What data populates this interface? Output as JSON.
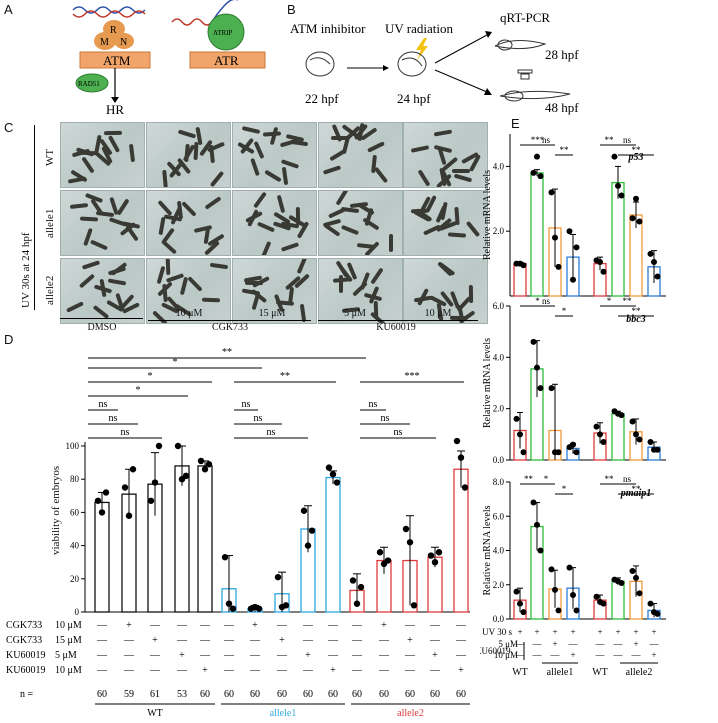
{
  "panels": {
    "A": "A",
    "B": "B",
    "C": "C",
    "D": "D",
    "E": "E"
  },
  "panelA": {
    "atm": "ATM",
    "atr": "ATR",
    "r": "R",
    "m": "M",
    "n": "N",
    "atrip": "ATRIP",
    "rad51": "RAD51",
    "hr": "HR"
  },
  "panelB": {
    "inhibitor": "ATM inhibitor",
    "uv": "UV radiation",
    "qrt": "qRT-PCR",
    "t22": "22 hpf",
    "t24": "24 hpf",
    "t28": "28 hpf",
    "t48": "48 hpf"
  },
  "panelC": {
    "side": "UV 30s at 24 hpf",
    "rows": [
      "WT",
      "allele1",
      "allele2"
    ],
    "dmso": "DMSO",
    "cgk": "CGK733",
    "ku": "KU60019",
    "c1": "10 μM",
    "c2": "15 μM",
    "k1": "5 μM",
    "k2": "10 μM"
  },
  "panelD": {
    "ylabel": "viability of embryos",
    "sig": [
      "*",
      "**",
      "*",
      "*",
      "ns",
      "ns",
      "ns",
      "**",
      "ns",
      "ns",
      "ns",
      "***",
      "ns",
      "ns",
      "ns"
    ],
    "rows": [
      {
        "label": "CGK733",
        "conc": "10 μM",
        "marks": [
          "—",
          "+",
          "—",
          "—",
          "—",
          "—",
          "+",
          "—",
          "—",
          "—",
          "—",
          "+",
          "—",
          "—",
          "—"
        ]
      },
      {
        "label": "CGK733",
        "conc": "15 μM",
        "marks": [
          "—",
          "—",
          "+",
          "—",
          "—",
          "—",
          "—",
          "+",
          "—",
          "—",
          "—",
          "—",
          "+",
          "—",
          "—"
        ]
      },
      {
        "label": "KU60019",
        "conc": "5 μM",
        "marks": [
          "—",
          "—",
          "—",
          "+",
          "—",
          "—",
          "—",
          "—",
          "+",
          "—",
          "—",
          "—",
          "—",
          "+",
          "—"
        ]
      },
      {
        "label": "KU60019",
        "conc": "10 μM",
        "marks": [
          "—",
          "—",
          "—",
          "—",
          "+",
          "—",
          "—",
          "—",
          "—",
          "+",
          "—",
          "—",
          "—",
          "—",
          "+"
        ]
      }
    ],
    "n_label": "n =",
    "n": [
      "60",
      "59",
      "61",
      "53",
      "60",
      "60",
      "60",
      "60",
      "60",
      "60",
      "60",
      "60",
      "60",
      "60",
      "60"
    ],
    "groups": [
      "WT",
      "allele1",
      "allele2"
    ]
  },
  "chart_data": [
    {
      "type": "bar",
      "title": "",
      "ylabel": "viability of embryos",
      "ylim": [
        0,
        100
      ],
      "categories": [
        "WT DMSO",
        "WT CGK733 10 μM",
        "WT CGK733 15 μM",
        "WT KU60019 5 μM",
        "WT KU60019 10 μM",
        "allele1 DMSO",
        "allele1 CGK733 10 μM",
        "allele1 CGK733 15 μM",
        "allele1 KU60019 5 μM",
        "allele1 KU60019 10 μM",
        "allele2 DMSO",
        "allele2 CGK733 10 μM",
        "allele2 CGK733 15 μM",
        "allele2 KU60019 5 μM",
        "allele2 KU60019 10 μM"
      ],
      "values": [
        66,
        71,
        77,
        88,
        88,
        14,
        2,
        11,
        50,
        81,
        13,
        31,
        31,
        33,
        86
      ],
      "errors": [
        6,
        15,
        19,
        12,
        3,
        20,
        2,
        13,
        14,
        4,
        10,
        8,
        27,
        6,
        11
      ],
      "colors": [
        "#111111",
        "#111111",
        "#111111",
        "#111111",
        "#111111",
        "#2ea8e0",
        "#2ea8e0",
        "#2ea8e0",
        "#2ea8e0",
        "#2ea8e0",
        "#e03a3a",
        "#e03a3a",
        "#e03a3a",
        "#e03a3a",
        "#e03a3a"
      ],
      "points": [
        [
          67,
          60,
          72
        ],
        [
          75,
          58,
          86
        ],
        [
          67,
          78,
          100
        ],
        [
          100,
          80,
          82
        ],
        [
          91,
          86,
          89
        ],
        [
          33,
          5,
          2
        ],
        [
          2,
          3,
          2
        ],
        [
          21,
          3,
          4
        ],
        [
          61,
          40,
          49
        ],
        [
          87,
          83,
          78
        ],
        [
          19,
          5,
          15
        ],
        [
          36,
          29,
          31
        ],
        [
          50,
          42,
          4
        ],
        [
          34,
          30,
          36
        ],
        [
          103,
          93,
          75
        ]
      ],
      "ticks": [
        0,
        20,
        40,
        60,
        80,
        100
      ]
    },
    {
      "type": "bar",
      "title": "p53",
      "ylabel": "Relative mRNA levels",
      "ylim": [
        0,
        5
      ],
      "categories": [
        "WT",
        "allele1",
        "allele1 KU60019 5 μM",
        "allele1 KU60019 10 μM",
        "WT",
        "allele2",
        "allele2 KU60019 5 μM",
        "allele2 KU60019 10 μM"
      ],
      "values": [
        1,
        3.8,
        2.1,
        1.2,
        1.0,
        3.5,
        2.5,
        0.9
      ],
      "errors": [
        0.05,
        0.1,
        1.2,
        0.7,
        0.2,
        0.5,
        0.4,
        0.5
      ],
      "points": [
        [
          1,
          1,
          0.95
        ],
        [
          3.8,
          4.3,
          3.7
        ],
        [
          3.2,
          1.8,
          0.9
        ],
        [
          2.0,
          0.5,
          1.5
        ],
        [
          1.1,
          1.05,
          0.75
        ],
        [
          4.3,
          3.4,
          3.1
        ],
        [
          2.4,
          3.0,
          2.3
        ],
        [
          1.3,
          1.05,
          0.6
        ]
      ],
      "ticks": [
        2.0,
        4.0
      ],
      "sig": [
        "***",
        "ns",
        "**",
        "**",
        "ns",
        "**"
      ]
    },
    {
      "type": "bar",
      "title": "bbc3",
      "ylabel": "Relative mRNA levels",
      "ylim": [
        0,
        6
      ],
      "categories": [
        "WT",
        "allele1",
        "allele1 KU60019 5 μM",
        "allele1 KU60019 10 μM",
        "WT",
        "allele2",
        "allele2 KU60019 5 μM",
        "allele2 KU60019 10 μM"
      ],
      "values": [
        1.15,
        3.55,
        1.15,
        0.45,
        1.05,
        1.8,
        1.1,
        0.5
      ],
      "errors": [
        0.7,
        1.1,
        1.8,
        0.2,
        0.4,
        0.1,
        0.5,
        0.2
      ],
      "points": [
        [
          1.6,
          1.0,
          0.3
        ],
        [
          4.6,
          3.6,
          2.8
        ],
        [
          2.8,
          0.3,
          0.3
        ],
        [
          0.5,
          0.6,
          0.3
        ],
        [
          1.3,
          1.0,
          0.7
        ],
        [
          1.9,
          1.8,
          1.75
        ],
        [
          1.5,
          1.0,
          0.8
        ],
        [
          0.7,
          0.4,
          0.4
        ]
      ],
      "ticks": [
        0.0,
        2.0,
        4.0,
        6.0
      ],
      "sig": [
        "*",
        "ns",
        "*",
        "*",
        "**",
        "**"
      ]
    },
    {
      "type": "bar",
      "title": "pmaip1",
      "ylabel": "Relative mRNA levels",
      "ylim": [
        0,
        8
      ],
      "categories": [
        "WT",
        "allele1",
        "allele1 KU60019 5 μM",
        "allele1 KU60019 10 μM",
        "WT",
        "allele2",
        "allele2 KU60019 5 μM",
        "allele2 KU60019 10 μM"
      ],
      "values": [
        1.1,
        5.4,
        1.75,
        1.8,
        1.1,
        2.2,
        2.2,
        0.5
      ],
      "errors": [
        0.7,
        1.4,
        1.1,
        1.2,
        0.3,
        0.2,
        0.9,
        0.4
      ],
      "points": [
        [
          1.6,
          0.9,
          0.4
        ],
        [
          6.8,
          5.5,
          4.0
        ],
        [
          2.9,
          1.7,
          0.5
        ],
        [
          3.0,
          1.4,
          0.5
        ],
        [
          1.3,
          1.0,
          0.9
        ],
        [
          2.3,
          2.2,
          2.1
        ],
        [
          2.8,
          2.4,
          1.5
        ],
        [
          0.9,
          0.4,
          0.3
        ]
      ],
      "ticks": [
        0.0,
        2.0,
        4.0,
        6.0,
        8.0
      ],
      "sig": [
        "**",
        "*",
        "*",
        "**",
        "ns",
        "**"
      ]
    }
  ],
  "panelE": {
    "bottom": [
      {
        "label": "UV 30 s",
        "marks": [
          "+",
          "+",
          "+",
          "+",
          "+",
          "+",
          "+",
          "+"
        ]
      },
      {
        "label": "5 μM",
        "marks": [
          "—",
          "—",
          "+",
          "—",
          "—",
          "—",
          "+",
          "—"
        ]
      },
      {
        "label": "10 μM",
        "marks": [
          "—",
          "—",
          "—",
          "+",
          "—",
          "—",
          "—",
          "+"
        ]
      }
    ],
    "ku": "KU60019",
    "groups": [
      "WT",
      "allele1",
      "WT",
      "allele2"
    ]
  }
}
